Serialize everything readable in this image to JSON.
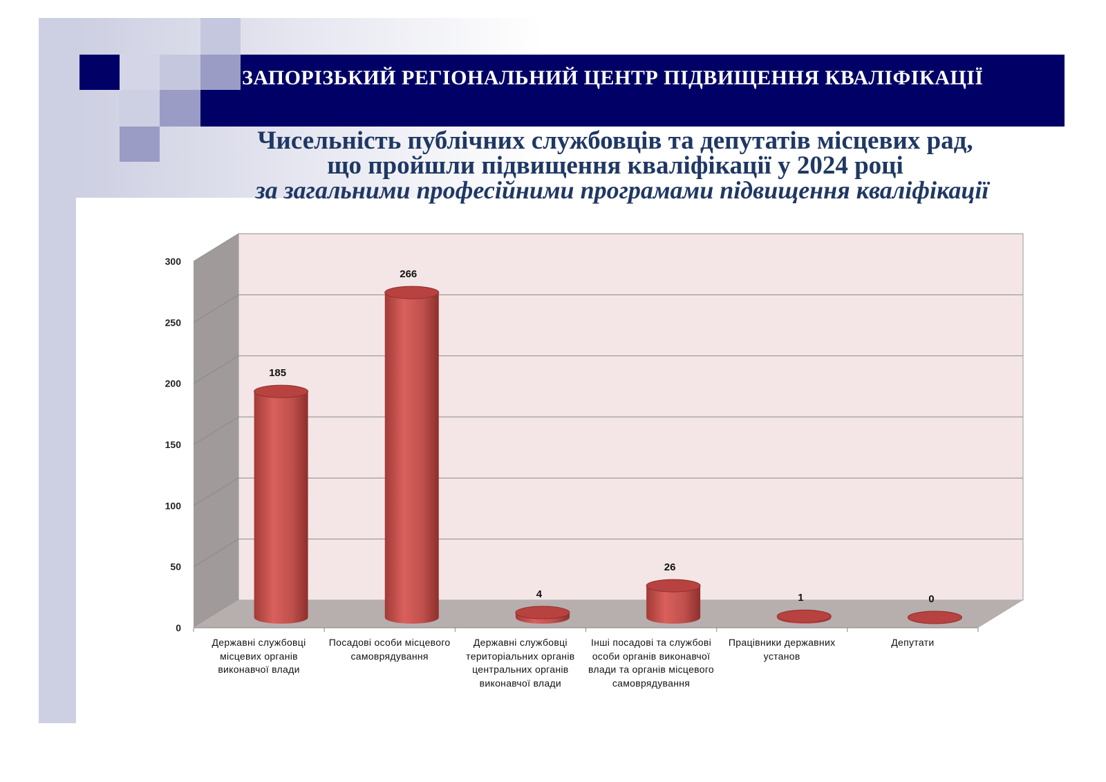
{
  "header": {
    "organization": "ЗАПОРІЗЬКИЙ РЕГІОНАЛЬНИЙ ЦЕНТР ПІДВИЩЕННЯ КВАЛІФІКАЦІЇ"
  },
  "chart_data": {
    "type": "bar",
    "title": "Чисельність публічних службовців та депутатів місцевих рад,",
    "title_line2": "що пройшли підвищення кваліфікації у 2024 році",
    "subtitle": "за загальними професійними програмами підвищення кваліфікації",
    "categories": [
      "Державні службовці місцевих органів виконавчої влади",
      "Посадові особи місцевого самоврядування",
      "Державні службовці територіальних органів центральних органів виконавчої влади",
      "Інші посадові та службові особи органів виконавчої влади та органів місцевого самоврядування",
      "Працівники державних установ",
      "Депутати"
    ],
    "values": [
      185,
      266,
      4,
      26,
      1,
      0
    ],
    "yticks": [
      0,
      50,
      100,
      150,
      200,
      250,
      300
    ],
    "ylim": [
      0,
      300
    ],
    "xlabel": "",
    "ylabel": "",
    "grid": true,
    "legend": "none",
    "colors": {
      "bar": "#c0504d",
      "wall": "#f4e6e6",
      "side": "#a09a9a",
      "floor": "#b7aeae"
    }
  }
}
